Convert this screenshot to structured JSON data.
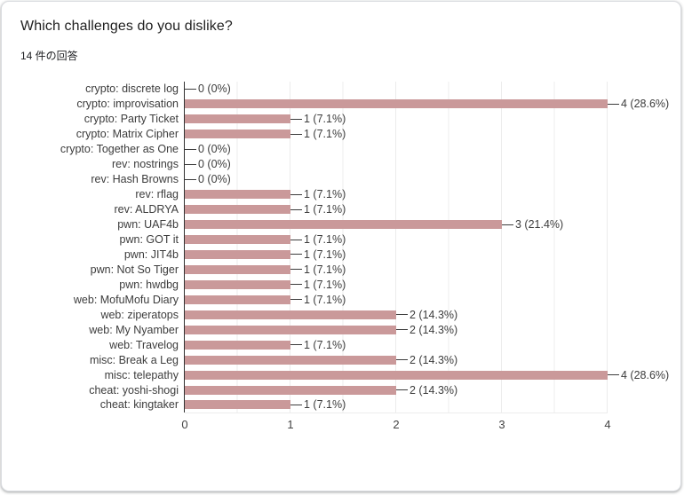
{
  "header": {
    "title": "Which challenges do you dislike?",
    "response_count": "14 件の回答"
  },
  "chart_data": {
    "type": "bar",
    "orientation": "horizontal",
    "title": "Which challenges do you dislike?",
    "categories": [
      "crypto: discrete log",
      "crypto: improvisation",
      "crypto: Party Ticket",
      "crypto: Matrix Cipher",
      "crypto: Together as One",
      "rev: nostrings",
      "rev: Hash Browns",
      "rev: rflag",
      "rev: ALDRYA",
      "pwn: UAF4b",
      "pwn: GOT it",
      "pwn: JIT4b",
      "pwn: Not So Tiger",
      "pwn: hwdbg",
      "web: MofuMofu Diary",
      "web: ziperatops",
      "web: My Nyamber",
      "web: Travelog",
      "misc: Break a Leg",
      "misc: telepathy",
      "cheat: yoshi-shogi",
      "cheat: kingtaker"
    ],
    "values": [
      0,
      4,
      1,
      1,
      0,
      0,
      0,
      1,
      1,
      3,
      1,
      1,
      1,
      1,
      1,
      2,
      2,
      1,
      2,
      4,
      2,
      1
    ],
    "annotations": [
      "0 (0%)",
      "4 (28.6%)",
      "1 (7.1%)",
      "1 (7.1%)",
      "0 (0%)",
      "0 (0%)",
      "0 (0%)",
      "1 (7.1%)",
      "1 (7.1%)",
      "3 (21.4%)",
      "1 (7.1%)",
      "1 (7.1%)",
      "1 (7.1%)",
      "1 (7.1%)",
      "1 (7.1%)",
      "2 (14.3%)",
      "2 (14.3%)",
      "1 (7.1%)",
      "2 (14.3%)",
      "4 (28.6%)",
      "2 (14.3%)",
      "1 (7.1%)"
    ],
    "xlim": [
      0,
      4
    ],
    "x_ticks": [
      "0",
      "1",
      "2",
      "3",
      "4"
    ],
    "xlabel": "",
    "ylabel": "",
    "grid": true,
    "legend": "none",
    "bar_color": "#ca999a",
    "total_responses": 14
  }
}
